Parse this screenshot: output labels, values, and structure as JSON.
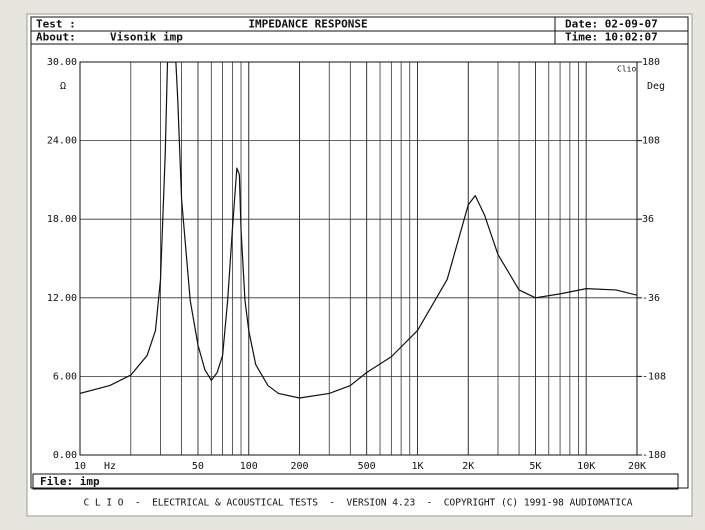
{
  "header": {
    "test_label": "Test :",
    "title": "IMPEDANCE RESPONSE",
    "date": "Date: 02-09-07",
    "about_label": "About:",
    "about": "Visonik imp",
    "time": "Time: 10:02:07"
  },
  "footer": {
    "file": "File: imp",
    "banner": "C L I O  -  ELECTRICAL & ACOUSTICAL TESTS  -  VERSION 4.23  -  COPYRIGHT (C) 1991-98 AUDIOMATICA"
  },
  "chart_data": {
    "type": "line",
    "log_x": true,
    "grid": true,
    "color": "#111111",
    "xlabel": "Hz",
    "ylabel": "Ω",
    "y2label": "Deg",
    "logo": "Clio",
    "x": [
      10,
      15,
      20,
      25,
      28,
      30,
      32,
      33,
      37,
      38,
      40,
      45,
      50,
      55,
      60,
      65,
      70,
      75,
      80,
      85,
      88,
      90,
      95,
      100,
      110,
      130,
      150,
      200,
      300,
      400,
      500,
      700,
      1000,
      1500,
      2000,
      2200,
      2500,
      3000,
      4000,
      5000,
      7000,
      10000,
      15000,
      20000
    ],
    "values": [
      4.7,
      5.3,
      6.1,
      7.6,
      9.5,
      13.4,
      23,
      30,
      30,
      27,
      19.5,
      11.8,
      8.4,
      6.5,
      5.7,
      6.3,
      7.6,
      11.8,
      17.2,
      21.9,
      21.4,
      17.2,
      11.8,
      9.5,
      6.9,
      5.3,
      4.7,
      4.35,
      4.7,
      5.3,
      6.3,
      7.5,
      9.5,
      13.4,
      19.1,
      19.8,
      18.3,
      15.3,
      12.6,
      12.0,
      12.3,
      12.7,
      12.6,
      12.2
    ],
    "xlim": [
      10,
      20000
    ],
    "xticks": [
      10,
      50,
      100,
      200,
      500,
      {
        "value": 1000,
        "label": "1K"
      },
      {
        "value": 2000,
        "label": "2K"
      },
      {
        "value": 5000,
        "label": "5K"
      },
      {
        "value": 10000,
        "label": "10K"
      },
      {
        "value": 20000,
        "label": "20K"
      }
    ],
    "ylim": [
      0,
      30
    ],
    "yticks": [
      {
        "value": 0,
        "label": "0.00"
      },
      {
        "value": 6,
        "label": "6.00"
      },
      {
        "value": 12,
        "label": "12.00"
      },
      {
        "value": 18,
        "label": "18.00"
      },
      {
        "value": 24,
        "label": "24.00"
      },
      {
        "value": 30,
        "label": "30.00"
      }
    ],
    "y2lim": [
      -180,
      180
    ],
    "y2ticks": [
      -180,
      -108,
      -36,
      36,
      108,
      180
    ]
  }
}
